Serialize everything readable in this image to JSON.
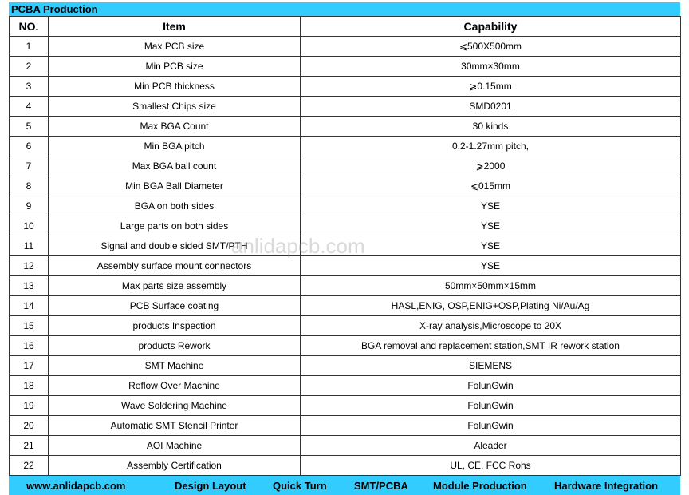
{
  "title": "PCBA Production",
  "headers": {
    "no": "NO.",
    "item": "Item",
    "capability": "Capability"
  },
  "rows": [
    {
      "no": "1",
      "item": "Max PCB size",
      "capability": "⩽500X500mm"
    },
    {
      "no": "2",
      "item": "Min PCB size",
      "capability": "30mm×30mm"
    },
    {
      "no": "3",
      "item": "Min PCB thickness",
      "capability": "⩾0.15mm"
    },
    {
      "no": "4",
      "item": "Smallest Chips size",
      "capability": "SMD0201"
    },
    {
      "no": "5",
      "item": "Max BGA Count",
      "capability": "30 kinds"
    },
    {
      "no": "6",
      "item": "Min BGA  pitch",
      "capability": "0.2-1.27mm pitch,"
    },
    {
      "no": "7",
      "item": "Max BGA ball count",
      "capability": "⩾2000"
    },
    {
      "no": "8",
      "item": "Min BGA Ball Diameter",
      "capability": "⩽015mm"
    },
    {
      "no": "9",
      "item": "BGA on both sides",
      "capability": "YSE"
    },
    {
      "no": "10",
      "item": "Large parts on both sides",
      "capability": "YSE"
    },
    {
      "no": "11",
      "item": "Signal and double sided SMT/PTH",
      "capability": "YSE"
    },
    {
      "no": "12",
      "item": "Assembly surface mount connectors",
      "capability": "YSE"
    },
    {
      "no": "13",
      "item": "Max parts size assembly",
      "capability": "50mm×50mm×15mm"
    },
    {
      "no": "14",
      "item": "PCB Surface coating",
      "capability": "HASL,ENIG, OSP,ENIG+OSP,Plating Ni/Au/Ag"
    },
    {
      "no": "15",
      "item": "products Inspection",
      "capability": "X-ray analysis,Microscope to 20X"
    },
    {
      "no": "16",
      "item": "products Rework",
      "capability": "BGA removal and replacement station,SMT IR rework station"
    },
    {
      "no": "17",
      "item": "SMT Machine",
      "capability": "SIEMENS"
    },
    {
      "no": "18",
      "item": "Reflow Over Machine",
      "capability": "FolunGwin"
    },
    {
      "no": "19",
      "item": "Wave Soldering Machine",
      "capability": "FolunGwin"
    },
    {
      "no": "20",
      "item": "Automatic SMT Stencil Printer",
      "capability": "FolunGwin"
    },
    {
      "no": "21",
      "item": "AOI Machine",
      "capability": "Aleader"
    },
    {
      "no": "22",
      "item": "Assembly  Certification",
      "capability": "UL, CE, FCC Rohs"
    }
  ],
  "footer": [
    "www.anlidapcb.com",
    "Design Layout",
    "Quick Turn",
    "SMT/PCBA",
    "Module Production",
    "Hardware Integration"
  ],
  "watermark": "anlidapcb.com",
  "colors": {
    "accent": "#33ccff"
  }
}
